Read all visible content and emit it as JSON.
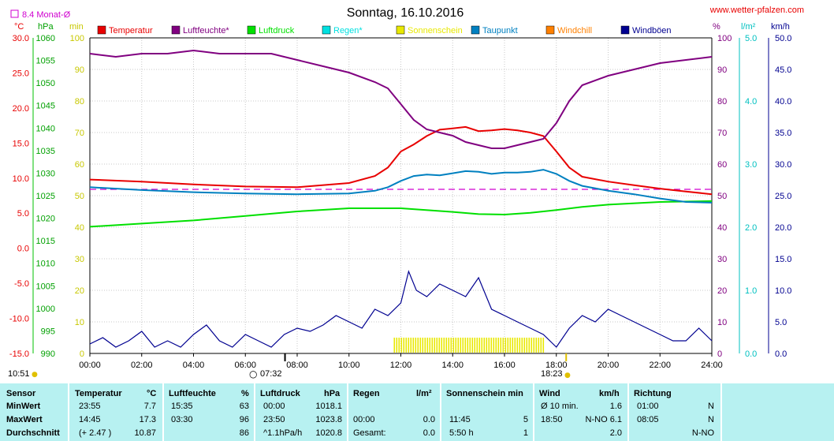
{
  "header": {
    "title": "Sonntag, 16.10.2016",
    "website": "www.wetter-pfalzen.com",
    "monthly_avg_label": "8.4 Monat-Ø"
  },
  "units": {
    "temp": "°C",
    "pressure": "hPa",
    "sun": "min",
    "humidity": "%",
    "rain": "l/m²",
    "wind": "km/h"
  },
  "legend": [
    {
      "name": "Temperatur",
      "color": "#e80000"
    },
    {
      "name": "Luftfeuchte*",
      "color": "#800080"
    },
    {
      "name": "Luftdruck",
      "color": "#00e000"
    },
    {
      "name": "Regen*",
      "color": "#00e0e0"
    },
    {
      "name": "Sonnenschein",
      "color": "#e8e800"
    },
    {
      "name": "Taupunkt",
      "color": "#0080c0"
    },
    {
      "name": "Windchill",
      "color": "#ff8000"
    },
    {
      "name": "Windböen",
      "color": "#000090"
    }
  ],
  "markers": {
    "sunrise": "07:32",
    "sunset": "18:23",
    "daylength": "10:51"
  },
  "chart_data": {
    "type": "line",
    "title": "Sonntag, 16.10.2016",
    "xlim": [
      0,
      24
    ],
    "x_ticks": [
      "00:00",
      "02:00",
      "04:00",
      "06:00",
      "08:00",
      "10:00",
      "12:00",
      "14:00",
      "16:00",
      "18:00",
      "20:00",
      "22:00",
      "24:00"
    ],
    "axes": {
      "temperature": {
        "unit": "°C",
        "range": [
          -15,
          30
        ],
        "ticks": [
          "-15.0",
          "-10.0",
          "-5.0",
          "0.0",
          "5.0",
          "10.0",
          "15.0",
          "20.0",
          "25.0",
          "30.0"
        ]
      },
      "pressure": {
        "unit": "hPa",
        "range": [
          990,
          1060
        ],
        "ticks": [
          "990",
          "995",
          "1000",
          "1005",
          "1010",
          "1015",
          "1020",
          "1025",
          "1030",
          "1035",
          "1040",
          "1045",
          "1050",
          "1055",
          "1060"
        ]
      },
      "sunshine": {
        "unit": "min",
        "range": [
          0,
          100
        ],
        "ticks": [
          "0",
          "10",
          "20",
          "30",
          "40",
          "50",
          "60",
          "70",
          "80",
          "90",
          "100"
        ]
      },
      "humidity": {
        "unit": "%",
        "range": [
          0,
          100
        ],
        "ticks": [
          "0",
          "10",
          "20",
          "30",
          "40",
          "50",
          "60",
          "70",
          "80",
          "90",
          "100"
        ]
      },
      "rain": {
        "unit": "l/m²",
        "range": [
          0,
          5
        ],
        "ticks": [
          "0.0",
          "1.0",
          "2.0",
          "3.0",
          "4.0",
          "5.0"
        ]
      },
      "wind": {
        "unit": "km/h",
        "range": [
          0,
          50
        ],
        "ticks": [
          "0.0",
          "5.0",
          "10.0",
          "15.0",
          "20.0",
          "25.0",
          "30.0",
          "35.0",
          "40.0",
          "45.0",
          "50.0"
        ]
      }
    },
    "grid": true,
    "reference_line": {
      "name": "8.4 Monat-Ø",
      "axis": "temperature",
      "value": 8.4
    },
    "series": [
      {
        "name": "Temperatur",
        "axis": "temperature",
        "x": [
          0,
          2,
          4,
          6,
          8,
          10,
          11,
          11.5,
          12,
          12.5,
          13,
          13.5,
          14,
          14.5,
          15,
          15.5,
          16,
          16.5,
          17,
          17.5,
          18,
          18.5,
          19,
          20,
          21,
          22,
          23,
          24
        ],
        "y": [
          9.8,
          9.5,
          9.1,
          8.8,
          8.7,
          9.3,
          10.3,
          11.5,
          13.8,
          14.8,
          16.0,
          16.9,
          17.1,
          17.3,
          16.7,
          16.8,
          17.0,
          16.8,
          16.5,
          16.0,
          13.8,
          11.5,
          10.2,
          9.5,
          9.0,
          8.5,
          8.1,
          7.7
        ]
      },
      {
        "name": "Luftfeuchte*",
        "axis": "humidity",
        "x": [
          0,
          1,
          2,
          3,
          4,
          5,
          6,
          7,
          8,
          9,
          10,
          11,
          11.5,
          12,
          12.5,
          13,
          13.5,
          14,
          14.5,
          15,
          15.5,
          16,
          16.5,
          17,
          17.5,
          18,
          18.5,
          19,
          20,
          21,
          22,
          23,
          24
        ],
        "y": [
          95,
          94,
          95,
          95,
          96,
          95,
          95,
          95,
          93,
          91,
          89,
          86,
          84,
          79,
          74,
          71,
          70,
          69,
          67,
          66,
          65,
          65,
          66,
          67,
          68,
          73,
          80,
          85,
          88,
          90,
          92,
          93,
          94
        ]
      },
      {
        "name": "Luftdruck",
        "axis": "pressure",
        "x": [
          0,
          2,
          4,
          6,
          8,
          10,
          12,
          14,
          15,
          16,
          17,
          18,
          19,
          20,
          22,
          24
        ],
        "y": [
          1018.1,
          1018.8,
          1019.5,
          1020.5,
          1021.5,
          1022.2,
          1022.2,
          1021.4,
          1020.9,
          1020.8,
          1021.2,
          1021.8,
          1022.5,
          1023.0,
          1023.6,
          1023.8
        ]
      },
      {
        "name": "Taupunkt",
        "axis": "temperature",
        "x": [
          0,
          2,
          4,
          6,
          8,
          10,
          11,
          11.5,
          12,
          12.5,
          13,
          13.5,
          14,
          14.5,
          15,
          15.5,
          16,
          16.5,
          17,
          17.5,
          18,
          18.5,
          19,
          20,
          21,
          22,
          23,
          24
        ],
        "y": [
          8.7,
          8.3,
          8.0,
          7.8,
          7.7,
          7.8,
          8.2,
          8.7,
          9.6,
          10.3,
          10.5,
          10.4,
          10.7,
          11.0,
          10.9,
          10.6,
          10.8,
          10.8,
          10.9,
          11.2,
          10.6,
          9.6,
          8.9,
          8.2,
          7.7,
          7.1,
          6.6,
          6.5
        ]
      },
      {
        "name": "Windböen",
        "axis": "wind",
        "x": [
          0,
          0.5,
          1,
          1.5,
          2,
          2.5,
          3,
          3.5,
          4,
          4.5,
          5,
          5.5,
          6,
          6.5,
          7,
          7.5,
          8,
          8.5,
          9,
          9.5,
          10,
          10.5,
          11,
          11.5,
          12,
          12.3,
          12.6,
          13,
          13.5,
          14,
          14.5,
          15,
          15.5,
          16,
          16.5,
          17,
          17.5,
          18,
          18.5,
          19,
          19.5,
          20,
          20.5,
          21,
          21.5,
          22,
          22.5,
          23,
          23.5,
          24
        ],
        "y": [
          1.5,
          2.5,
          1,
          2,
          3.5,
          1,
          2,
          1,
          3,
          4.5,
          2,
          1,
          3,
          2,
          1,
          3,
          4,
          3.5,
          4.5,
          6,
          5,
          4,
          7,
          6,
          8,
          13,
          10,
          9,
          11,
          10,
          9,
          12,
          7,
          6,
          5,
          4,
          3,
          1,
          4,
          6,
          5,
          7,
          6,
          5,
          4,
          3,
          2,
          2,
          4,
          2
        ]
      },
      {
        "name": "Sonnenschein",
        "axis": "sunshine",
        "x": [
          11.75,
          17.5
        ],
        "y": [
          5,
          5
        ]
      }
    ]
  },
  "stats": {
    "headers": {
      "sensor": "Sensor",
      "temperature": "Temperatur",
      "temp_unit": "°C",
      "humidity": "Luftfeuchte",
      "hum_unit": "%",
      "pressure": "Luftdruck",
      "press_unit": "hPa",
      "rain": "Regen",
      "rain_unit": "l/m²",
      "sun": "Sonnenschein min",
      "wind": "Wind",
      "wind_unit": "km/h",
      "direction": "Richtung"
    },
    "rows": [
      {
        "label": "MinWert",
        "temp_time": "23:55",
        "temp_val": "7.7",
        "hum_time": "15:35",
        "hum_val": "63",
        "press_time": "00:00",
        "press_val": "1018.1",
        "rain_time": "",
        "rain_val": "",
        "sun_time": "",
        "sun_val": "",
        "wind_time": "Ø 10 min.",
        "wind_val": "1.6",
        "dir_time": "01:00",
        "dir_val": "N"
      },
      {
        "label": "MaxWert",
        "temp_time": "14:45",
        "temp_val": "17.3",
        "hum_time": "03:30",
        "hum_val": "96",
        "press_time": "23:50",
        "press_val": "1023.8",
        "rain_time": "00:00",
        "rain_val": "0.0",
        "sun_time": "11:45",
        "sun_val": "5",
        "wind_time": "18:50",
        "wind_val": "N-NO 6.1",
        "dir_time": "08:05",
        "dir_val": "N"
      },
      {
        "label": "Durchschnitt",
        "temp_time": "(+ 2.47 )",
        "temp_val": "10.87",
        "hum_time": "",
        "hum_val": "86",
        "press_time": "^1.1hPa/h",
        "press_val": "1020.8",
        "rain_time": "Gesamt:",
        "rain_val": "0.0",
        "sun_time": "5:50 h",
        "sun_val": "1",
        "wind_time": "",
        "wind_val": "2.0",
        "dir_time": "",
        "dir_val": "N-NO"
      }
    ]
  }
}
